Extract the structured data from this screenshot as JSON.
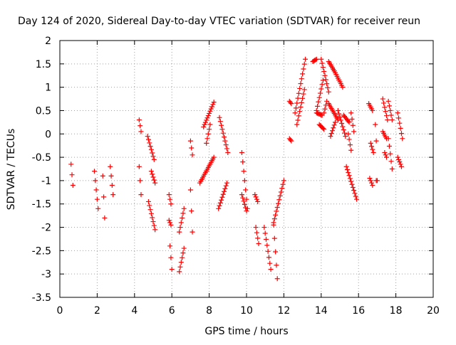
{
  "chart_data": {
    "type": "scatter",
    "title": "Day 124 of 2020, Sidereal Day-to-day VTEC variation (SDTVAR) for receiver reun",
    "xlabel": "GPS time / hours",
    "ylabel": "SDTVAR / TECUs",
    "xlim": [
      0,
      20
    ],
    "ylim": [
      -3.5,
      2
    ],
    "xticks": [
      0,
      2,
      4,
      6,
      8,
      10,
      12,
      14,
      16,
      18,
      20
    ],
    "yticks": [
      -3.5,
      -3,
      -2.5,
      -2,
      -1.5,
      -1,
      -0.5,
      0,
      0.5,
      1,
      1.5,
      2
    ],
    "grid": true,
    "marker": "+",
    "marker_color": "#ff0000",
    "segments": [
      {
        "t0": 0.6,
        "t1": 0.7,
        "y0": -0.65,
        "y1": -1.1
      },
      {
        "t0": 1.85,
        "t1": 2.05,
        "y0": -0.8,
        "y1": -1.6
      },
      {
        "t0": 2.3,
        "t1": 2.4,
        "y0": -0.9,
        "y1": -1.8
      },
      {
        "t0": 2.7,
        "t1": 2.85,
        "y0": -0.7,
        "y1": -1.3
      },
      {
        "t0": 4.25,
        "t1": 4.35,
        "y0": 0.3,
        "y1": 0.05
      },
      {
        "t0": 4.25,
        "t1": 4.35,
        "y0": -0.7,
        "y1": -1.3
      },
      {
        "t0": 4.7,
        "t1": 5.05,
        "y0": -0.05,
        "y1": -0.55
      },
      {
        "t0": 4.75,
        "t1": 5.1,
        "y0": -1.45,
        "y1": -2.05
      },
      {
        "t0": 4.9,
        "t1": 5.1,
        "y0": -0.8,
        "y1": -1.05
      },
      {
        "t0": 5.85,
        "t1": 5.95,
        "y0": -1.3,
        "y1": -1.5
      },
      {
        "t0": 5.85,
        "t1": 5.95,
        "y0": -1.85,
        "y1": -1.95
      },
      {
        "t0": 5.9,
        "t1": 6.0,
        "y0": -2.4,
        "y1": -2.9
      },
      {
        "t0": 6.4,
        "t1": 6.65,
        "y0": -2.95,
        "y1": -2.45
      },
      {
        "t0": 6.4,
        "t1": 6.65,
        "y0": -2.1,
        "y1": -1.6
      },
      {
        "t0": 7.0,
        "t1": 7.1,
        "y0": -1.2,
        "y1": -2.1
      },
      {
        "t0": 7.0,
        "t1": 7.1,
        "y0": -0.15,
        "y1": -0.45
      },
      {
        "t0": 7.5,
        "t1": 8.25,
        "y0": -1.05,
        "y1": -0.5
      },
      {
        "t0": 7.7,
        "t1": 8.25,
        "y0": 0.15,
        "y1": 0.68
      },
      {
        "t0": 7.85,
        "t1": 8.05,
        "y0": -0.2,
        "y1": 0.2
      },
      {
        "t0": 8.5,
        "t1": 8.95,
        "y0": -1.6,
        "y1": -1.05
      },
      {
        "t0": 8.55,
        "t1": 9.0,
        "y0": 0.35,
        "y1": -0.4
      },
      {
        "t0": 9.75,
        "t1": 10.05,
        "y0": -0.4,
        "y1": -1.6
      },
      {
        "t0": 9.75,
        "t1": 10.0,
        "y0": -1.3,
        "y1": -1.65
      },
      {
        "t0": 10.45,
        "t1": 10.6,
        "y0": -1.3,
        "y1": -1.45
      },
      {
        "t0": 10.5,
        "t1": 10.65,
        "y0": -2.0,
        "y1": -2.35
      },
      {
        "t0": 10.95,
        "t1": 11.3,
        "y0": -2.0,
        "y1": -2.9
      },
      {
        "t0": 11.45,
        "t1": 11.65,
        "y0": -1.95,
        "y1": -3.1
      },
      {
        "t0": 11.45,
        "t1": 12.0,
        "y0": -1.9,
        "y1": -1.0
      },
      {
        "t0": 12.3,
        "t1": 12.4,
        "y0": 0.7,
        "y1": 0.65
      },
      {
        "t0": 12.3,
        "t1": 12.4,
        "y0": -0.1,
        "y1": -0.15
      },
      {
        "t0": 12.6,
        "t1": 13.15,
        "y0": 0.45,
        "y1": 1.6
      },
      {
        "t0": 12.7,
        "t1": 13.1,
        "y0": 0.2,
        "y1": 0.95
      },
      {
        "t0": 13.55,
        "t1": 13.75,
        "y0": 1.55,
        "y1": 1.6
      },
      {
        "t0": 13.75,
        "t1": 14.1,
        "y0": 0.5,
        "y1": 1.15
      },
      {
        "t0": 13.75,
        "t1": 14.05,
        "y0": 0.45,
        "y1": 0.4
      },
      {
        "t0": 13.9,
        "t1": 14.15,
        "y0": 0.2,
        "y1": 0.1
      },
      {
        "t0": 14.0,
        "t1": 14.4,
        "y0": 1.6,
        "y1": 0.9
      },
      {
        "t0": 14.15,
        "t1": 14.3,
        "y0": 0.45,
        "y1": 0.7
      },
      {
        "t0": 14.4,
        "t1": 14.7,
        "y0": 1.55,
        "y1": 1.35
      },
      {
        "t0": 14.7,
        "t1": 15.15,
        "y0": 1.35,
        "y1": 1.0
      },
      {
        "t0": 14.4,
        "t1": 14.9,
        "y0": 0.65,
        "y1": 0.3
      },
      {
        "t0": 14.5,
        "t1": 14.75,
        "y0": -0.05,
        "y1": 0.25
      },
      {
        "t0": 14.9,
        "t1": 15.3,
        "y0": 0.5,
        "y1": -0.05
      },
      {
        "t0": 15.2,
        "t1": 15.5,
        "y0": 0.4,
        "y1": 0.25
      },
      {
        "t0": 15.35,
        "t1": 15.9,
        "y0": -0.7,
        "y1": -1.4
      },
      {
        "t0": 15.45,
        "t1": 15.6,
        "y0": 0.0,
        "y1": -0.35
      },
      {
        "t0": 15.6,
        "t1": 15.75,
        "y0": 0.45,
        "y1": 0.05
      },
      {
        "t0": 16.55,
        "t1": 16.75,
        "y0": 0.65,
        "y1": 0.5
      },
      {
        "t0": 16.6,
        "t1": 16.75,
        "y0": -0.95,
        "y1": -1.1
      },
      {
        "t0": 16.65,
        "t1": 16.8,
        "y0": -0.2,
        "y1": -0.4
      },
      {
        "t0": 16.9,
        "t1": 16.95,
        "y0": 0.2,
        "y1": -0.15
      },
      {
        "t0": 16.95,
        "t1": 17.0,
        "y0": -1.0,
        "y1": -1.0
      },
      {
        "t0": 17.3,
        "t1": 17.55,
        "y0": 0.75,
        "y1": 0.3
      },
      {
        "t0": 17.3,
        "t1": 17.5,
        "y0": 0.05,
        "y1": -0.1
      },
      {
        "t0": 17.4,
        "t1": 17.5,
        "y0": -0.4,
        "y1": -0.5
      },
      {
        "t0": 17.6,
        "t1": 17.8,
        "y0": 0.7,
        "y1": 0.3
      },
      {
        "t0": 17.6,
        "t1": 17.8,
        "y0": -0.1,
        "y1": -0.75
      },
      {
        "t0": 18.1,
        "t1": 18.35,
        "y0": 0.45,
        "y1": -0.1
      },
      {
        "t0": 18.1,
        "t1": 18.3,
        "y0": -0.5,
        "y1": -0.7
      }
    ]
  }
}
